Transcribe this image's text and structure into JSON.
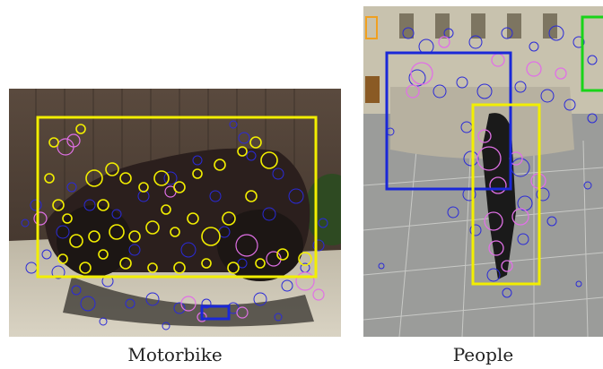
{
  "colors": {
    "box_yellow": "#f2ee00",
    "box_blue": "#1a28d8",
    "box_green": "#19d419",
    "box_orange": "#f0a020",
    "feature_blue": "#2a2ad8",
    "feature_yellow": "#f2ee00",
    "feature_violet": "#e070e6"
  },
  "panels": [
    {
      "caption": "Motorbike"
    },
    {
      "caption": "People"
    }
  ]
}
